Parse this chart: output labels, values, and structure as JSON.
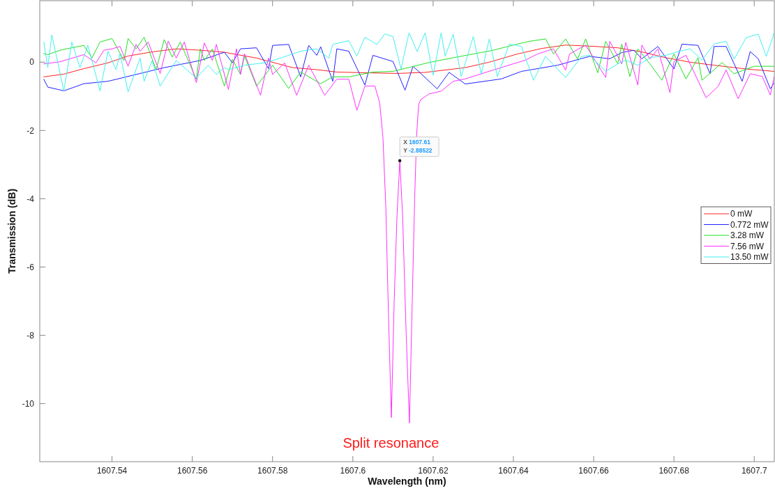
{
  "chart_data": {
    "type": "line",
    "xlabel": "Wavelength (nm)",
    "ylabel": "Transmission (dB)",
    "xlim": [
      1607.522,
      1607.705
    ],
    "ylim": [
      -11.7,
      1.8
    ],
    "xticks": [
      1607.54,
      1607.56,
      1607.58,
      1607.6,
      1607.62,
      1607.64,
      1607.66,
      1607.68,
      1607.7
    ],
    "yticks": [
      -10,
      -8,
      -6,
      -4,
      -2,
      0
    ],
    "grid": false,
    "legend": "right",
    "marker": "none",
    "line_style": "solid",
    "annotations": [
      {
        "text": "X 1607.61\nY -2.88522",
        "x": 1607.6117,
        "y": -2.88522
      },
      "Split resonance"
    ],
    "series": [
      {
        "name": "0 mW",
        "color": "#ff2020",
        "x": [
          1607.523,
          1607.528,
          1607.533,
          1607.539,
          1607.544,
          1607.55,
          1607.556,
          1607.562,
          1607.568,
          1607.576,
          1607.585,
          1607.591,
          1607.596,
          1607.603,
          1607.611,
          1607.618,
          1607.628,
          1607.634,
          1607.641,
          1607.647,
          1607.653,
          1607.659,
          1607.666,
          1607.672,
          1607.678,
          1607.684,
          1607.69,
          1607.698,
          1607.705
        ],
        "values": [
          -0.43,
          -0.35,
          -0.19,
          -0.02,
          0.18,
          0.3,
          0.39,
          0.35,
          0.29,
          0.12,
          -0.16,
          -0.22,
          -0.29,
          -0.31,
          -0.33,
          -0.3,
          -0.16,
          0.0,
          0.24,
          0.4,
          0.5,
          0.47,
          0.42,
          0.3,
          0.13,
          0.0,
          -0.09,
          -0.2,
          -0.27
        ]
      },
      {
        "name": "0.772 mW",
        "color": "#2020ff",
        "x": [
          1607.523,
          1607.524,
          1607.528,
          1607.533,
          1607.539,
          1607.546,
          1607.553,
          1607.562,
          1607.568,
          1607.57,
          1607.572,
          1607.576,
          1607.579,
          1607.58,
          1607.584,
          1607.587,
          1607.589,
          1607.591,
          1607.592,
          1607.595,
          1607.596,
          1607.599,
          1607.603,
          1607.605,
          1607.61,
          1607.613,
          1607.615,
          1607.621,
          1607.624,
          1607.628,
          1607.637,
          1607.642,
          1607.651,
          1607.659,
          1607.664,
          1607.667,
          1607.67,
          1607.672,
          1607.676,
          1607.68,
          1607.682,
          1607.686,
          1607.689,
          1607.69,
          1607.693,
          1607.697,
          1607.699,
          1607.701,
          1607.704,
          1607.705
        ],
        "values": [
          -0.5,
          -0.73,
          -0.84,
          -0.63,
          -0.56,
          -0.36,
          -0.16,
          0.05,
          0.29,
          -0.02,
          0.39,
          0.42,
          -0.19,
          0.49,
          0.52,
          -0.43,
          0.49,
          0.2,
          0.45,
          -0.56,
          0.39,
          0.32,
          -0.67,
          0.2,
          0.02,
          -0.82,
          -0.12,
          -0.78,
          -0.3,
          -0.64,
          -0.49,
          -0.27,
          -0.09,
          0.17,
          0.1,
          0.28,
          0.35,
          0.1,
          0.46,
          -0.2,
          0.53,
          0.49,
          -0.34,
          0.46,
          0.46,
          -0.56,
          0.31,
          0.1,
          -0.78,
          -0.6
        ]
      },
      {
        "name": "3.28 mW",
        "color": "#20e020",
        "x": [
          1607.523,
          1607.524,
          1607.527,
          1607.533,
          1607.535,
          1607.537,
          1607.54,
          1607.543,
          1607.544,
          1607.546,
          1607.548,
          1607.551,
          1607.553,
          1607.555,
          1607.557,
          1607.561,
          1607.562,
          1607.563,
          1607.565,
          1607.568,
          1607.57,
          1607.572,
          1607.573,
          1607.576,
          1607.58,
          1607.584,
          1607.587,
          1607.592,
          1607.595,
          1607.599,
          1607.605,
          1607.61,
          1607.619,
          1607.625,
          1607.635,
          1607.641,
          1607.644,
          1607.648,
          1607.65,
          1607.653,
          1607.656,
          1607.658,
          1607.661,
          1607.663,
          1607.666,
          1607.667,
          1607.669,
          1607.671,
          1607.674,
          1607.677,
          1607.68,
          1607.683,
          1607.686,
          1607.687,
          1607.692,
          1607.695,
          1607.7,
          1607.705
        ],
        "values": [
          0.25,
          0.22,
          0.35,
          0.49,
          0.12,
          0.59,
          0.69,
          0.05,
          0.69,
          0.39,
          0.73,
          -0.22,
          0.66,
          0.15,
          0.59,
          -0.5,
          0.39,
          0.05,
          0.39,
          -0.7,
          0.08,
          -0.36,
          0.18,
          -0.7,
          -0.09,
          -0.77,
          -0.29,
          -0.63,
          -0.43,
          -0.43,
          -0.29,
          -0.27,
          -0.01,
          0.13,
          0.35,
          0.53,
          0.61,
          0.68,
          0.24,
          0.68,
          0.09,
          0.68,
          -0.31,
          0.61,
          -0.05,
          0.53,
          -0.42,
          0.39,
          -0.05,
          -0.53,
          0.24,
          -0.49,
          0.13,
          -0.53,
          -0.01,
          -0.34,
          -0.12,
          -0.12
        ]
      },
      {
        "name": "7.56 mW",
        "color": "#ff30ff",
        "x": [
          1607.523,
          1607.527,
          1607.533,
          1607.536,
          1607.538,
          1607.54,
          1607.542,
          1607.544,
          1607.546,
          1607.547,
          1607.549,
          1607.552,
          1607.554,
          1607.556,
          1607.558,
          1607.561,
          1607.563,
          1607.565,
          1607.566,
          1607.569,
          1607.571,
          1607.572,
          1607.573,
          1607.577,
          1607.579,
          1607.58,
          1607.583,
          1607.586,
          1607.589,
          1607.593,
          1607.596,
          1607.599,
          1607.601,
          1607.603,
          1607.6055,
          1607.6067,
          1607.6075,
          1607.6082,
          1607.6089,
          1607.6096,
          1607.6103,
          1607.611,
          1607.6117,
          1607.6124,
          1607.6133,
          1607.6141,
          1607.6148,
          1607.6154,
          1607.6159,
          1607.6164,
          1607.6169,
          1607.619,
          1607.622,
          1607.625,
          1607.628,
          1607.632,
          1607.638,
          1607.643,
          1607.646,
          1607.65,
          1607.653,
          1607.654,
          1607.658,
          1607.663,
          1607.664,
          1607.667,
          1607.668,
          1607.671,
          1607.672,
          1607.674,
          1607.676,
          1607.679,
          1607.68,
          1607.683,
          1607.688,
          1607.691,
          1607.693,
          1607.696,
          1607.699,
          1607.702,
          1607.704,
          1607.705
        ],
        "values": [
          -0.05,
          0.01,
          0.22,
          -0.02,
          0.35,
          0.39,
          0.46,
          -0.12,
          0.52,
          0.32,
          0.59,
          -0.33,
          0.62,
          0.12,
          0.59,
          -0.6,
          0.56,
          0.05,
          0.52,
          -0.8,
          0.39,
          -0.36,
          0.25,
          -0.97,
          0.12,
          -0.36,
          -0.02,
          -0.97,
          -0.09,
          -0.97,
          -0.5,
          -0.5,
          -1.41,
          -0.7,
          -0.7,
          -1.2,
          -2.2,
          -4.2,
          -7.5,
          -10.41,
          -7.0,
          -4.5,
          -2.89,
          -4.5,
          -8.0,
          -10.57,
          -7.0,
          -4.0,
          -2.12,
          -1.24,
          -1.1,
          -0.93,
          -0.85,
          -0.56,
          -0.49,
          -0.34,
          -0.12,
          0.06,
          0.24,
          0.39,
          -0.23,
          0.24,
          0.5,
          -0.45,
          0.61,
          -0.05,
          0.58,
          -0.67,
          0.5,
          0.09,
          0.39,
          -0.89,
          0.02,
          0.2,
          -1.04,
          -0.71,
          -0.23,
          -1.07,
          -0.34,
          -0.42,
          -0.96,
          -0.42
        ]
      },
      {
        "name": "13.50 mW",
        "color": "#40f0f0",
        "x": [
          1607.523,
          1607.524,
          1607.525,
          1607.528,
          1607.53,
          1607.532,
          1607.534,
          1607.537,
          1607.539,
          1607.541,
          1607.542,
          1607.544,
          1607.547,
          1607.548,
          1607.55,
          1607.552,
          1607.556,
          1607.558,
          1607.561,
          1607.564,
          1607.566,
          1607.568,
          1607.569,
          1607.573,
          1607.578,
          1607.582,
          1607.587,
          1607.591,
          1607.594,
          1607.595,
          1607.599,
          1607.601,
          1607.603,
          1607.606,
          1607.608,
          1607.61,
          1607.612,
          1607.614,
          1607.616,
          1607.618,
          1607.62,
          1607.622,
          1607.623,
          1607.625,
          1607.627,
          1607.63,
          1607.632,
          1607.634,
          1607.636,
          1607.639,
          1607.642,
          1607.645,
          1607.648,
          1607.653,
          1607.657,
          1607.659,
          1607.663,
          1607.666,
          1607.668,
          1607.671,
          1607.674,
          1607.678,
          1607.681,
          1607.684,
          1607.687,
          1607.69,
          1607.693,
          1607.695,
          1607.698,
          1607.701,
          1607.703,
          1607.705
        ],
        "values": [
          0.59,
          -0.16,
          0.8,
          -0.84,
          0.59,
          -0.16,
          0.49,
          -0.84,
          0.32,
          -0.22,
          0.25,
          -0.87,
          0.12,
          -0.56,
          0.05,
          -0.7,
          0.05,
          -0.16,
          -0.46,
          -0.09,
          -0.36,
          -0.16,
          -0.22,
          -0.09,
          -0.02,
          0.12,
          0.32,
          0.39,
          0.12,
          0.52,
          0.63,
          0.18,
          0.73,
          0.52,
          0.83,
          0.75,
          -0.2,
          0.86,
          0.31,
          0.86,
          -0.38,
          0.86,
          0.17,
          0.82,
          -0.42,
          0.75,
          -0.34,
          0.68,
          -0.42,
          0.53,
          0.46,
          -0.53,
          0.17,
          -0.45,
          0.17,
          0.2,
          -0.27,
          -0.05,
          0.06,
          -0.09,
          0.13,
          0.2,
          0.31,
          0.39,
          0.06,
          0.53,
          0.61,
          0.09,
          0.72,
          0.82,
          0.17,
          0.86
        ]
      }
    ]
  }
}
